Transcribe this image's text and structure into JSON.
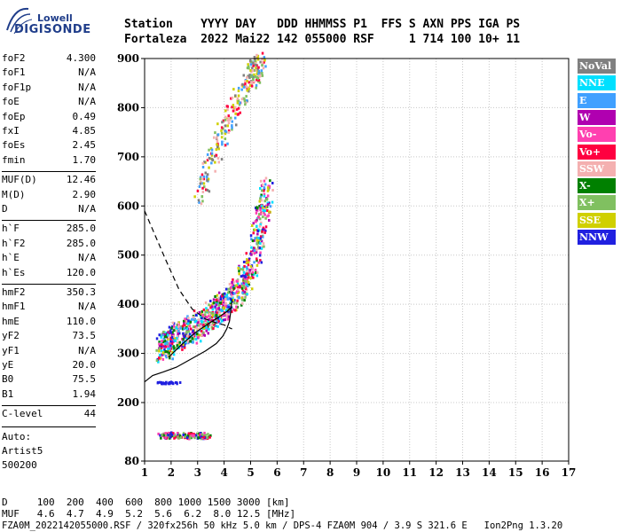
{
  "logo": {
    "line1": "Lowell",
    "line2": "DIGISONDE"
  },
  "header": {
    "line1": "Station    YYYY DAY   DDD HHMMSS P1  FFS S AXN PPS IGA PS",
    "line2": "Fortaleza  2022 Mai22 142 055000 RSF     1 714 100 10+ 11"
  },
  "params": [
    {
      "name": "foF2",
      "value": "4.300"
    },
    {
      "name": "foF1",
      "value": "N/A"
    },
    {
      "name": "foF1p",
      "value": "N/A"
    },
    {
      "name": "foE",
      "value": "N/A"
    },
    {
      "name": "foEp",
      "value": "0.49"
    },
    {
      "name": "fxI",
      "value": "4.85"
    },
    {
      "name": "foEs",
      "value": "2.45"
    },
    {
      "name": "fmin",
      "value": "1.70"
    },
    {
      "name": "MUF(D)",
      "value": "12.46"
    },
    {
      "name": "M(D)",
      "value": "2.90"
    },
    {
      "name": "D",
      "value": "N/A"
    },
    {
      "name": "h`F",
      "value": "285.0"
    },
    {
      "name": "h`F2",
      "value": "285.0"
    },
    {
      "name": "h`E",
      "value": "N/A"
    },
    {
      "name": "h`Es",
      "value": "120.0"
    },
    {
      "name": "hmF2",
      "value": "350.3"
    },
    {
      "name": "hmF1",
      "value": "N/A"
    },
    {
      "name": "hmE",
      "value": "110.0"
    },
    {
      "name": "yF2",
      "value": "73.5"
    },
    {
      "name": "yF1",
      "value": "N/A"
    },
    {
      "name": "yE",
      "value": "20.0"
    },
    {
      "name": "B0",
      "value": "75.5"
    },
    {
      "name": "B1",
      "value": "1.94"
    },
    {
      "name": "C-level",
      "value": "44"
    }
  ],
  "auto": {
    "line1": "Auto:",
    "line2": "Artist5",
    "line3": "500200"
  },
  "footer": {
    "d_line": "D     100  200  400  600  800 1000 1500 3000 [km]",
    "muf_line": "MUF   4.6  4.7  4.9  5.2  5.6  6.2  8.0 12.5 [MHz]",
    "info_line": "FZA0M_2022142055000.RSF / 320fx256h 50 kHz 5.0 km / DPS-4 FZA0M 904 / 3.9 S 321.6 E   Ion2Png 1.3.20"
  },
  "legend": [
    {
      "label": "NoVal",
      "color": "#808080"
    },
    {
      "label": "NNE",
      "color": "#00e0ff"
    },
    {
      "label": "E",
      "color": "#40a0ff"
    },
    {
      "label": "W",
      "color": "#b000b0"
    },
    {
      "label": "Vo-",
      "color": "#ff40b0"
    },
    {
      "label": "Vo+",
      "color": "#ff0040"
    },
    {
      "label": "SSW",
      "color": "#f4b0b0"
    },
    {
      "label": "X-",
      "color": "#008000"
    },
    {
      "label": "X+",
      "color": "#80c060"
    },
    {
      "label": "SSE",
      "color": "#d0d000"
    },
    {
      "label": "NNW",
      "color": "#2020e0"
    }
  ],
  "chart_data": {
    "type": "scatter",
    "title": "",
    "xlabel": "",
    "ylabel": "",
    "xlim": [
      1,
      17
    ],
    "ylim": [
      80,
      900
    ],
    "x_ticks": [
      1,
      2,
      3,
      4,
      5,
      6,
      7,
      8,
      9,
      10,
      11,
      12,
      13,
      14,
      15,
      16,
      17
    ],
    "y_ticks": [
      80,
      200,
      300,
      400,
      500,
      600,
      700,
      800,
      900
    ],
    "grid": true,
    "legend_position": "right",
    "trace_curve": {
      "name": "",
      "x": [
        1.0,
        1.3,
        1.7,
        2.2,
        2.8,
        3.3,
        3.7,
        3.95,
        4.1,
        4.2,
        4.25,
        4.3
      ],
      "y": [
        242,
        255,
        262,
        272,
        290,
        305,
        320,
        335,
        350,
        365,
        385,
        410
      ]
    },
    "profile_curve": {
      "name": "",
      "x": [
        1.0,
        1.4,
        1.8,
        2.3,
        2.8,
        3.3,
        3.7,
        4.0,
        4.2,
        4.3
      ],
      "y": [
        590,
        540,
        490,
        430,
        390,
        370,
        362,
        358,
        352,
        350
      ]
    },
    "profile_curve2": {
      "name": "",
      "x": [
        1.9,
        2.4,
        2.9,
        3.4,
        3.8,
        4.1,
        4.3
      ],
      "y": [
        292,
        318,
        342,
        360,
        374,
        385,
        395
      ]
    },
    "echo_regions": [
      {
        "name": "F-trace",
        "x": [
          1.6,
          2.0,
          2.5,
          3.0,
          3.5,
          4.0,
          4.5,
          5.0,
          5.3,
          5.6
        ],
        "y": [
          310,
          330,
          345,
          360,
          380,
          400,
          430,
          480,
          560,
          640
        ]
      },
      {
        "name": "F-upper",
        "x": [
          3.0,
          3.5,
          4.0,
          4.5,
          5.0,
          5.2,
          5.4
        ],
        "y": [
          620,
          700,
          760,
          820,
          870,
          880,
          890
        ]
      },
      {
        "name": "Es",
        "x": [
          1.6,
          2.0,
          2.5,
          3.0,
          3.3
        ],
        "y": [
          135,
          135,
          134,
          134,
          135
        ]
      },
      {
        "name": "E-low",
        "x": [
          1.6,
          2.2
        ],
        "y": [
          242,
          243
        ]
      }
    ]
  }
}
